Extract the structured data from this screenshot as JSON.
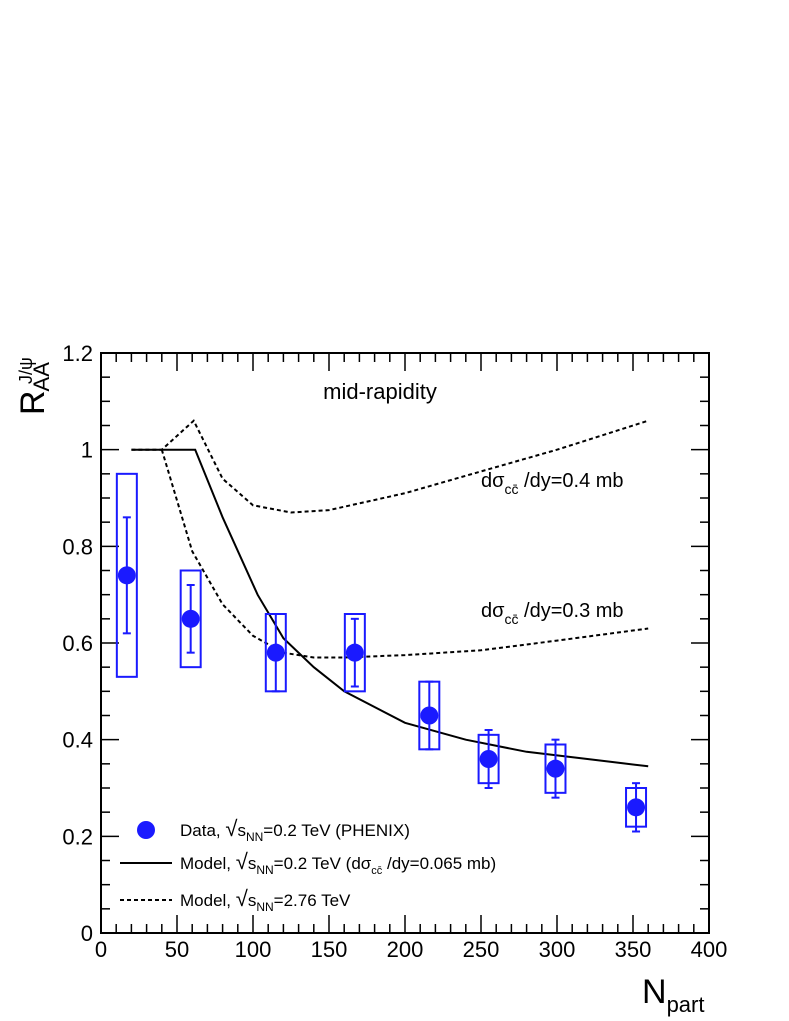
{
  "chart_data": {
    "type": "scatter",
    "title": "mid-rapidity",
    "xlabel": "N",
    "xlabel_sub": "part",
    "ylabel": "R",
    "ylabel_sub": "AA",
    "ylabel_sup": "J/ψ",
    "xlim": [
      0,
      400
    ],
    "ylim": [
      0,
      1.2
    ],
    "xticks": [
      0,
      50,
      100,
      150,
      200,
      250,
      300,
      350,
      400
    ],
    "xtick_labels": [
      "0",
      "50",
      "100",
      "150",
      "200",
      "250",
      "300",
      "350",
      "400"
    ],
    "yticks": [
      0,
      0.2,
      0.4,
      0.6,
      0.8,
      1.0,
      1.2
    ],
    "ytick_labels": [
      "0",
      "0.2",
      "0.4",
      "0.6",
      "0.8",
      "1",
      "1.2"
    ],
    "grid": false,
    "colors": {
      "data": "#1a1aff",
      "model": "#000000"
    },
    "series": [
      {
        "name": "Data, √sNN=0.2 TeV (PHENIX)",
        "kind": "points",
        "points": [
          {
            "x": 17,
            "y": 0.74,
            "err_lo": 0.62,
            "err_hi": 0.86,
            "sys_lo": 0.53,
            "sys_hi": 0.95
          },
          {
            "x": 59,
            "y": 0.65,
            "err_lo": 0.58,
            "err_hi": 0.72,
            "sys_lo": 0.55,
            "sys_hi": 0.75
          },
          {
            "x": 115,
            "y": 0.58,
            "err_lo": 0.5,
            "err_hi": 0.66,
            "sys_lo": 0.5,
            "sys_hi": 0.66
          },
          {
            "x": 167,
            "y": 0.58,
            "err_lo": 0.51,
            "err_hi": 0.65,
            "sys_lo": 0.5,
            "sys_hi": 0.66
          },
          {
            "x": 216,
            "y": 0.45,
            "err_lo": 0.38,
            "err_hi": 0.52,
            "sys_lo": 0.38,
            "sys_hi": 0.52
          },
          {
            "x": 255,
            "y": 0.36,
            "err_lo": 0.3,
            "err_hi": 0.42,
            "sys_lo": 0.31,
            "sys_hi": 0.41
          },
          {
            "x": 299,
            "y": 0.34,
            "err_lo": 0.28,
            "err_hi": 0.4,
            "sys_lo": 0.29,
            "sys_hi": 0.39
          },
          {
            "x": 352,
            "y": 0.26,
            "err_lo": 0.21,
            "err_hi": 0.31,
            "sys_lo": 0.22,
            "sys_hi": 0.3
          }
        ]
      },
      {
        "name": "Model, √sNN=0.2 TeV (dσcc̄/dy=0.065 mb)",
        "kind": "solid",
        "x": [
          20,
          40,
          62,
          80,
          103,
          120,
          140,
          160,
          200,
          240,
          280,
          320,
          360
        ],
        "y": [
          1.0,
          1.0,
          1.0,
          0.86,
          0.7,
          0.61,
          0.55,
          0.5,
          0.435,
          0.4,
          0.375,
          0.36,
          0.345
        ]
      },
      {
        "name": "Model, √sNN=2.76 TeV (dσcc̄/dy=0.4 mb)",
        "kind": "dashed",
        "x": [
          20,
          40,
          61,
          80,
          100,
          125,
          150,
          200,
          250,
          300,
          360
        ],
        "y": [
          1.0,
          1.0,
          1.06,
          0.94,
          0.885,
          0.87,
          0.875,
          0.91,
          0.955,
          1.0,
          1.06
        ]
      },
      {
        "name": "Model, √sNN=2.76 TeV (dσcc̄/dy=0.3 mb)",
        "kind": "dashed",
        "x": [
          40,
          60,
          80,
          100,
          120,
          140,
          160,
          200,
          250,
          300,
          360
        ],
        "y": [
          1.0,
          0.79,
          0.68,
          0.615,
          0.58,
          0.57,
          0.57,
          0.575,
          0.585,
          0.605,
          0.63
        ]
      }
    ],
    "annotations": [
      {
        "id": "top",
        "pre": "dσ",
        "sub": "cc̄",
        "post": " /dy=0.4 mb"
      },
      {
        "id": "mid",
        "pre": "dσ",
        "sub": "cc̄",
        "post": " /dy=0.3 mb"
      }
    ],
    "legend": {
      "position": "bottom-left",
      "entries": [
        {
          "marker": "circle",
          "pre": "Data, ",
          "root": "√",
          "s": "s",
          "sub": "NN",
          "post": "=0.2 TeV (PHENIX)"
        },
        {
          "marker": "solid",
          "pre": "Model, ",
          "root": "√",
          "s": "s",
          "sub": "NN",
          "post": "=0.2 TeV (dσ",
          "sub2": "cc̄",
          "post2": " /dy=0.065 mb)"
        },
        {
          "marker": "dashed",
          "pre": "Model, ",
          "root": "√",
          "s": "s",
          "sub": "NN",
          "post": "=2.76 TeV"
        }
      ]
    }
  }
}
